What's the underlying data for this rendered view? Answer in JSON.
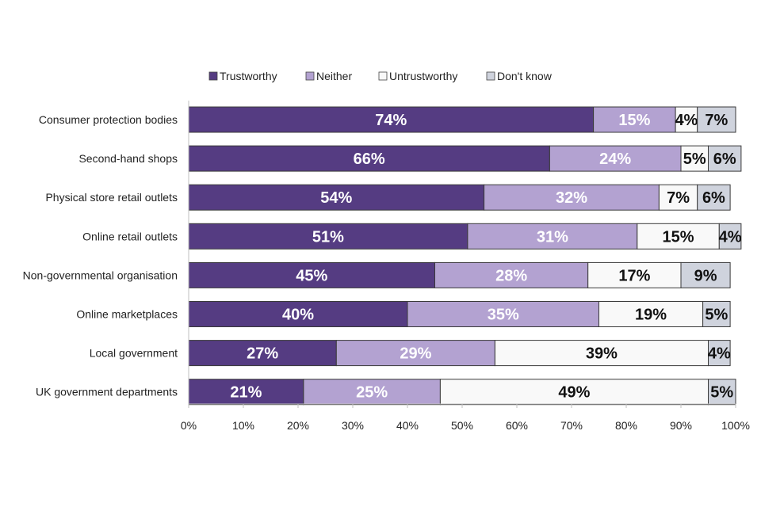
{
  "chart_data": {
    "type": "bar",
    "orientation": "horizontal",
    "stacked": true,
    "title": "",
    "xlabel": "",
    "ylabel": "",
    "xlim": [
      0,
      100
    ],
    "x_ticks": [
      "0%",
      "10%",
      "20%",
      "30%",
      "40%",
      "50%",
      "60%",
      "70%",
      "80%",
      "90%",
      "100%"
    ],
    "grid": false,
    "legend_position": "top",
    "categories": [
      "Consumer protection bodies",
      "Second-hand shops",
      "Physical store retail outlets",
      "Online retail outlets",
      "Non-governmental organisation",
      "Online marketplaces",
      "Local government",
      "UK government departments"
    ],
    "series": [
      {
        "name": "Trustworthy",
        "color": "#553c82",
        "label_color": "#ffffff",
        "values": [
          74,
          66,
          54,
          51,
          45,
          40,
          27,
          21
        ]
      },
      {
        "name": "Neither",
        "color": "#b3a2d1",
        "label_color": "#ffffff",
        "values": [
          15,
          24,
          32,
          31,
          28,
          35,
          29,
          25
        ]
      },
      {
        "name": "Untrustworthy",
        "color": "#f9f9f9",
        "label_color": "#111111",
        "values": [
          4,
          5,
          7,
          15,
          17,
          19,
          39,
          49
        ]
      },
      {
        "name": "Don't know",
        "color": "#cfd3dd",
        "label_color": "#111111",
        "values": [
          7,
          6,
          6,
          4,
          9,
          5,
          4,
          5
        ]
      }
    ]
  }
}
